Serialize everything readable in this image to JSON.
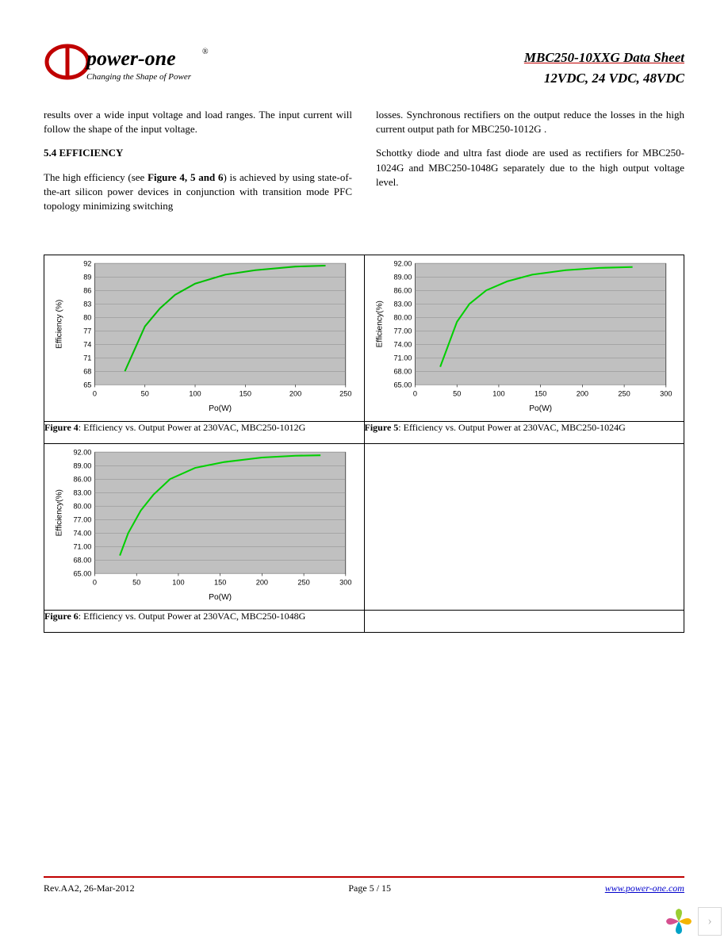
{
  "header": {
    "brand": "power-one",
    "reg": "®",
    "tagline": "Changing the Shape of Power",
    "title_line1": "MBC250-10XXG Data Sheet",
    "title_line2": "12VDC, 24 VDC, 48VDC"
  },
  "body": {
    "left_p1": "results over a wide input voltage and load ranges. The input current will follow the shape of the input voltage.",
    "sect": "5.4 EFFICIENCY",
    "left_p2a": "The high efficiency (see ",
    "left_p2b": "Figure 4, 5 and 6",
    "left_p2c": ") is achieved by using state-of-the-art silicon power devices in conjunction with transition mode PFC topology minimizing switching",
    "right_p1": "losses. Synchronous rectifiers on the output reduce the losses in the high current output path for MBC250-1012G .",
    "right_p2": "Schottky diode and ultra fast diode are used as rectifiers for MBC250-1024G and MBC250-1048G separately due to the high output voltage level."
  },
  "charts": {
    "fig4": {
      "type": "line",
      "xlabel": "Po(W)",
      "ylabel": "Efficiency (%)",
      "xlim": [
        0,
        250
      ],
      "xticks": [
        0,
        50,
        100,
        150,
        200,
        250
      ],
      "ylim": [
        65,
        92
      ],
      "yticks": [
        65,
        68,
        71,
        74,
        77,
        80,
        83,
        86,
        89,
        92
      ],
      "plot_bg": "#c0c0c0",
      "grid_color": "#8a8a8a",
      "line_color": "#00c000",
      "line_width": 2,
      "axis_fontsize": 9,
      "points": [
        [
          30,
          68
        ],
        [
          40,
          73
        ],
        [
          50,
          78
        ],
        [
          65,
          82
        ],
        [
          80,
          85
        ],
        [
          100,
          87.5
        ],
        [
          130,
          89.5
        ],
        [
          160,
          90.5
        ],
        [
          200,
          91.3
        ],
        [
          230,
          91.5
        ]
      ]
    },
    "fig5": {
      "type": "line",
      "xlabel": "Po(W)",
      "ylabel": "Efficiency(%)",
      "xlim": [
        0,
        300
      ],
      "xticks": [
        0,
        50,
        100,
        150,
        200,
        250,
        300
      ],
      "ylim": [
        65,
        92
      ],
      "yticks": [
        65.0,
        68.0,
        71.0,
        74.0,
        77.0,
        80.0,
        83.0,
        86.0,
        89.0,
        92.0
      ],
      "ytick_decimals": 2,
      "plot_bg": "#c0c0c0",
      "grid_color": "#8a8a8a",
      "line_color": "#00d000",
      "line_width": 2,
      "axis_fontsize": 9,
      "points": [
        [
          30,
          69
        ],
        [
          40,
          74
        ],
        [
          50,
          79
        ],
        [
          65,
          83
        ],
        [
          85,
          86
        ],
        [
          110,
          88
        ],
        [
          140,
          89.5
        ],
        [
          180,
          90.5
        ],
        [
          220,
          91
        ],
        [
          260,
          91.2
        ]
      ]
    },
    "fig6": {
      "type": "line",
      "xlabel": "Po(W)",
      "ylabel": "Efficiency(%)",
      "xlim": [
        0,
        300
      ],
      "xticks": [
        0,
        50,
        100,
        150,
        200,
        250,
        300
      ],
      "ylim": [
        65,
        92
      ],
      "yticks": [
        65.0,
        68.0,
        71.0,
        74.0,
        77.0,
        80.0,
        83.0,
        86.0,
        89.0,
        92.0
      ],
      "ytick_decimals": 2,
      "plot_bg": "#c0c0c0",
      "grid_color": "#8a8a8a",
      "line_color": "#00d000",
      "line_width": 2,
      "axis_fontsize": 9,
      "points": [
        [
          30,
          69
        ],
        [
          40,
          74
        ],
        [
          55,
          79
        ],
        [
          70,
          82.5
        ],
        [
          90,
          86
        ],
        [
          120,
          88.5
        ],
        [
          155,
          89.8
        ],
        [
          200,
          90.8
        ],
        [
          240,
          91.2
        ],
        [
          270,
          91.3
        ]
      ]
    }
  },
  "captions": {
    "fig4_b": "Figure 4",
    "fig4_t": ": Efficiency vs. Output Power at 230VAC, MBC250-1012G",
    "fig5_b": "Figure 5",
    "fig5_t": ": Efficiency vs. Output Power at 230VAC, MBC250-1024G",
    "fig6_b": "Figure 6",
    "fig6_t": ": Efficiency vs. Output Power at 230VAC, MBC250-1048G"
  },
  "footer": {
    "rev": "Rev.AA2, 26-Mar-2012",
    "page": "Page 5 / 15",
    "url": "www.power-one.com"
  },
  "colors": {
    "red": "#c00000",
    "link": "#0000cc"
  }
}
